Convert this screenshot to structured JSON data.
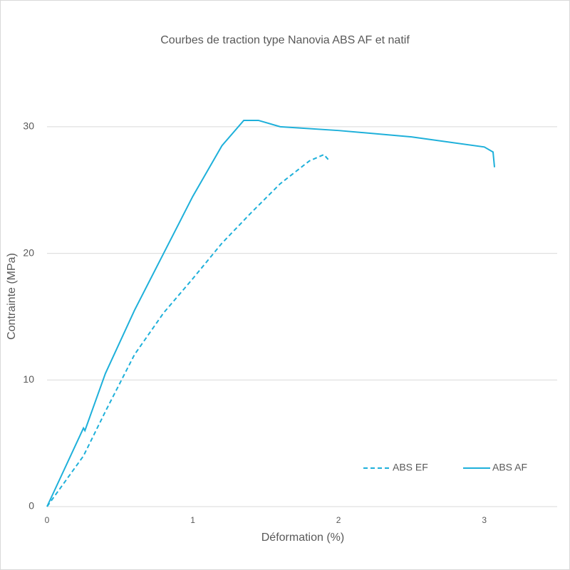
{
  "chart_data": {
    "type": "line",
    "title": "Courbes de traction type Nanovia ABS AF et natif",
    "x_label": "Déformation (%)",
    "y_label": "Contrainte (MPa)",
    "xlim": [
      0,
      3.5
    ],
    "xticks": [
      0,
      1,
      2,
      3
    ],
    "ylim": [
      0,
      35
    ],
    "yticks": [
      0,
      10,
      20,
      30
    ],
    "grid": true,
    "legend": "bottom-right",
    "series": [
      {
        "name": "ABS EF",
        "color": "#1eb0da",
        "style": "dashed",
        "x": [
          0,
          0.25,
          0.4,
          0.6,
          0.8,
          1.0,
          1.2,
          1.4,
          1.6,
          1.8,
          1.9,
          1.93
        ],
        "values": [
          0,
          4,
          7.5,
          12,
          15.3,
          18,
          20.8,
          23.2,
          25.5,
          27.3,
          27.8,
          27.4
        ]
      },
      {
        "name": "ABS AF",
        "color": "#1eb0da",
        "style": "solid",
        "x": [
          0,
          0.25,
          0.26,
          0.4,
          0.6,
          0.8,
          1.0,
          1.2,
          1.35,
          1.45,
          1.6,
          2.0,
          2.5,
          3.0,
          3.06,
          3.07
        ],
        "values": [
          0,
          6.2,
          6.0,
          10.5,
          15.5,
          20,
          24.5,
          28.5,
          30.5,
          30.5,
          30,
          29.7,
          29.2,
          28.4,
          28,
          26.8
        ]
      }
    ]
  }
}
